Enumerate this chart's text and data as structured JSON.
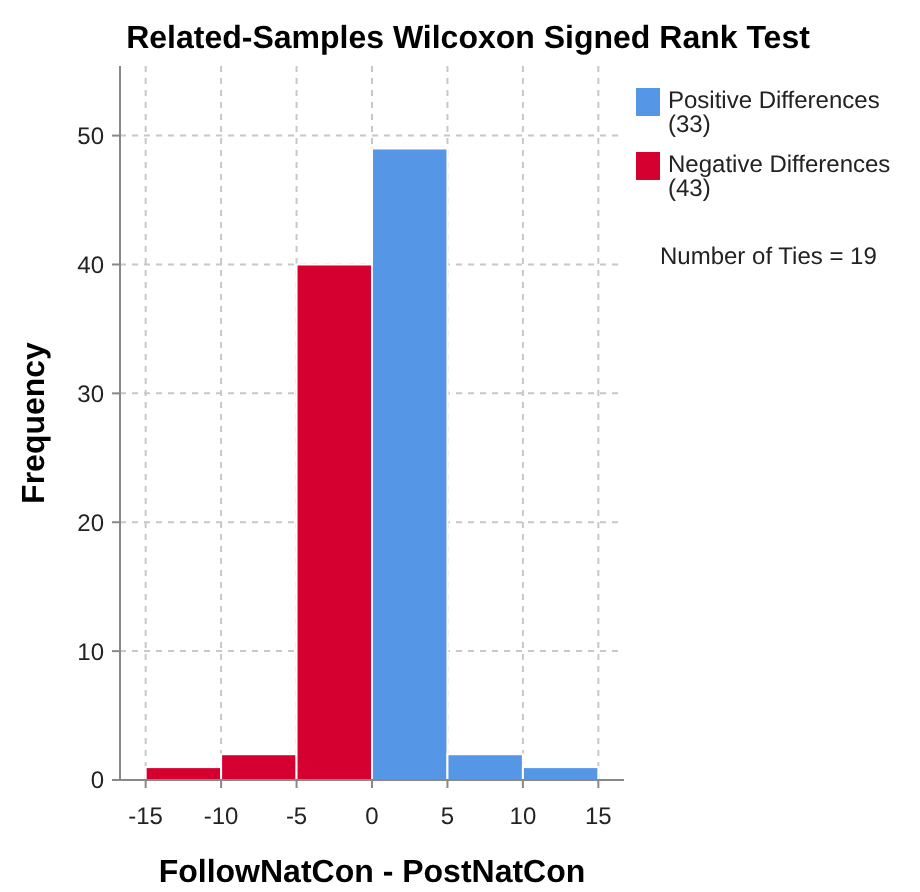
{
  "chart_data": {
    "type": "histogram",
    "title": "Related-Samples Wilcoxon Signed Rank Test",
    "xlabel": "FollowNatCon - PostNatCon",
    "ylabel": "Frequency",
    "bins": [
      -15,
      -10,
      -5,
      0,
      5,
      10,
      15
    ],
    "series": [
      {
        "name": "Positive Differences\n(33)",
        "color": "#5596e6",
        "values": [
          null,
          null,
          null,
          49,
          2,
          1
        ]
      },
      {
        "name": "Negative Differences\n(43)",
        "color": "#d5002f",
        "values": [
          1,
          2,
          40,
          null,
          null,
          null
        ]
      }
    ],
    "xlim": [
      -16.7,
      16.7
    ],
    "xticks": [
      -15,
      -10,
      -5,
      0,
      5,
      10,
      15
    ],
    "ylim": [
      0,
      55.4
    ],
    "yticks": [
      0,
      10,
      20,
      30,
      40,
      50
    ],
    "grid": true,
    "legend": "right",
    "annotations": [
      "Number of Ties = 19"
    ]
  }
}
